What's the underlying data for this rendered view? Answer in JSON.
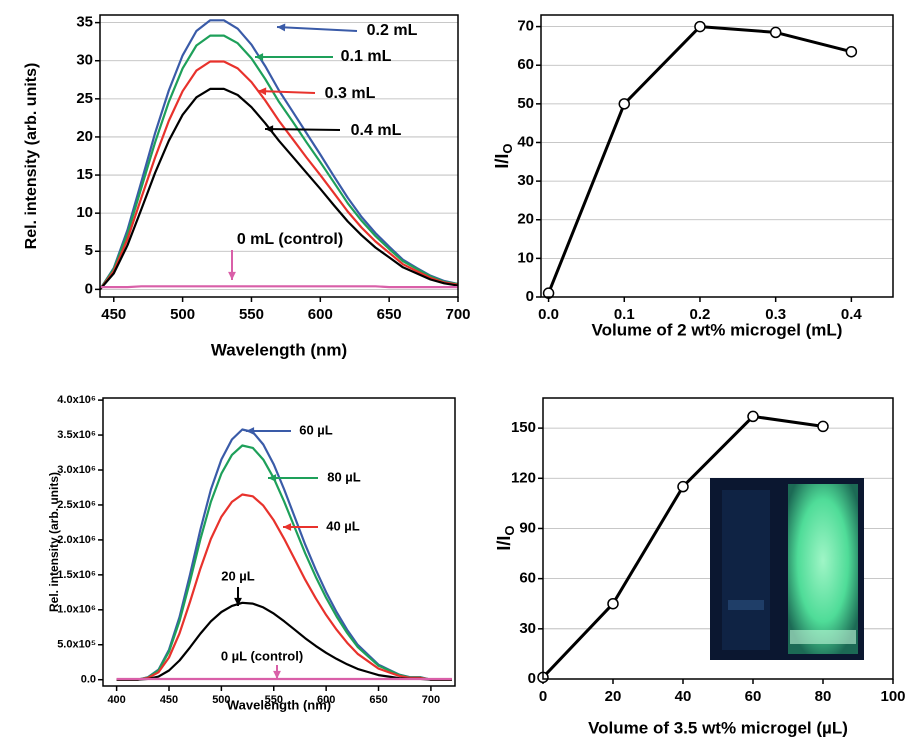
{
  "chart_data": [
    {
      "type": "line",
      "xlabel": "Wavelength (nm)",
      "ylabel": "Rel. intensity (arb. units)",
      "xlim": [
        440,
        700
      ],
      "ylim": [
        -1,
        36
      ],
      "xticks": [
        450,
        500,
        550,
        600,
        650,
        700
      ],
      "yticks": [
        0,
        5,
        10,
        15,
        20,
        25,
        30,
        35
      ],
      "grid": true,
      "x": [
        440,
        450,
        460,
        470,
        480,
        490,
        500,
        510,
        520,
        530,
        540,
        550,
        560,
        570,
        580,
        590,
        600,
        610,
        620,
        630,
        640,
        650,
        660,
        670,
        680,
        690,
        700
      ],
      "series": [
        {
          "name": "0.2 mL",
          "color": "#3a5ba8",
          "values": [
            0,
            2.8,
            7.8,
            14.1,
            20.5,
            26.1,
            30.7,
            33.9,
            35.3,
            35.3,
            34.2,
            32.1,
            29.3,
            26.1,
            23.3,
            20.5,
            17.7,
            14.8,
            12.0,
            9.5,
            7.4,
            5.6,
            3.9,
            2.8,
            1.8,
            1.1,
            0.7
          ]
        },
        {
          "name": "0.1 mL",
          "color": "#1ea05a",
          "values": [
            0,
            2.7,
            7.3,
            13.3,
            19.3,
            24.6,
            29.0,
            32.0,
            33.3,
            33.3,
            32.3,
            30.3,
            27.6,
            24.6,
            22.0,
            19.3,
            16.7,
            14.0,
            11.3,
            9.0,
            7.0,
            5.3,
            3.7,
            2.7,
            1.7,
            1.0,
            0.7
          ]
        },
        {
          "name": "0.3 mL",
          "color": "#e8322c",
          "values": [
            0,
            2.4,
            6.6,
            12.0,
            17.3,
            22.1,
            26.0,
            28.7,
            29.9,
            29.9,
            29.0,
            27.2,
            24.8,
            22.1,
            19.7,
            17.3,
            15.0,
            12.6,
            10.2,
            8.1,
            6.3,
            4.8,
            3.3,
            2.4,
            1.5,
            0.9,
            0.6
          ]
        },
        {
          "name": "0.4 mL",
          "color": "#000000",
          "values": [
            0,
            2.1,
            5.8,
            10.5,
            15.3,
            19.5,
            22.9,
            25.2,
            26.3,
            26.3,
            25.5,
            23.9,
            21.8,
            19.5,
            17.4,
            15.3,
            13.2,
            11.0,
            8.9,
            7.1,
            5.5,
            4.2,
            2.9,
            2.1,
            1.3,
            0.8,
            0.5
          ]
        },
        {
          "name": "0 mL (control)",
          "color": "#d95fa8",
          "values": [
            0.3,
            0.3,
            0.3,
            0.4,
            0.4,
            0.4,
            0.4,
            0.4,
            0.4,
            0.4,
            0.4,
            0.4,
            0.4,
            0.4,
            0.4,
            0.4,
            0.4,
            0.4,
            0.4,
            0.4,
            0.4,
            0.3,
            0.3,
            0.3,
            0.3,
            0.3,
            0.3
          ]
        }
      ]
    },
    {
      "type": "line",
      "markers": true,
      "xlabel": "Volume of 2 wt% microgel (mL)",
      "ylabel": "I/I",
      "ylabel_subscript": "O",
      "xlim": [
        -0.01,
        0.455
      ],
      "ylim": [
        0,
        73
      ],
      "xticks": [
        {
          "value": 0,
          "label": "0.0"
        },
        0.1,
        0.2,
        0.3,
        0.4
      ],
      "yticks": [
        0,
        10,
        20,
        30,
        40,
        50,
        60,
        70
      ],
      "grid": true,
      "x": [
        0,
        0.1,
        0.2,
        0.3,
        0.4
      ],
      "color": "#000000",
      "values": [
        1,
        50,
        70,
        68.5,
        63.5
      ]
    },
    {
      "type": "line",
      "xlabel": "Wavelength (nm)",
      "ylabel": "Rel. intensity (arb. units)",
      "xlim": [
        387,
        723
      ],
      "ylim": [
        -90000,
        4030000
      ],
      "xticks": [
        400,
        450,
        500,
        550,
        600,
        650,
        700
      ],
      "yticks": [
        {
          "value": 0,
          "label": "0.0"
        },
        {
          "value": 500000,
          "label": "5.0x10⁵"
        },
        {
          "value": 1000000,
          "label": "1.0x10⁶"
        },
        {
          "value": 1500000,
          "label": "1.5x10⁶"
        },
        {
          "value": 2000000,
          "label": "2.0x10⁶"
        },
        {
          "value": 2500000,
          "label": "2.5x10⁶"
        },
        {
          "value": 3000000,
          "label": "3.0x10⁶"
        },
        {
          "value": 3500000,
          "label": "3.5x10⁶"
        },
        {
          "value": 4000000,
          "label": "4.0x10⁶"
        }
      ],
      "grid": false,
      "x": [
        400,
        410,
        420,
        430,
        440,
        450,
        460,
        470,
        480,
        490,
        500,
        510,
        520,
        530,
        540,
        550,
        560,
        570,
        580,
        590,
        600,
        610,
        620,
        630,
        640,
        650,
        660,
        670,
        680,
        690,
        700,
        710,
        720
      ],
      "series": [
        {
          "name": "60 µL",
          "color": "#3a5ba8",
          "values": [
            0,
            0,
            0,
            35800,
            143200,
            429600,
            895000,
            1503600,
            2148000,
            2720800,
            3150400,
            3436800,
            3580000,
            3544200,
            3365200,
            3078800,
            2720800,
            2327000,
            1933200,
            1575200,
            1253000,
            966600,
            716000,
            501200,
            358000,
            214800,
            143200,
            71600,
            35800,
            35800,
            0,
            0,
            0
          ]
        },
        {
          "name": "80 µL",
          "color": "#1ea05a",
          "values": [
            0,
            0,
            0,
            33500,
            134000,
            402000,
            837500,
            1407000,
            2010000,
            2546000,
            2948000,
            3216000,
            3350000,
            3316500,
            3149000,
            2881000,
            2546000,
            2177500,
            1809000,
            1474000,
            1172500,
            904500,
            670000,
            469000,
            335000,
            201000,
            134000,
            67000,
            33500,
            33500,
            0,
            0,
            0
          ]
        },
        {
          "name": "40 µL",
          "color": "#e8322c",
          "values": [
            0,
            0,
            0,
            26500,
            106000,
            318000,
            662500,
            1113000,
            1590000,
            2014000,
            2332000,
            2544000,
            2650000,
            2623500,
            2491000,
            2279000,
            2014000,
            1722500,
            1431000,
            1166000,
            927500,
            715500,
            530000,
            371000,
            265000,
            159000,
            106000,
            53000,
            26500,
            26500,
            0,
            0,
            0
          ]
        },
        {
          "name": "20 µL",
          "color": "#000000",
          "values": [
            0,
            0,
            0,
            11000,
            44000,
            132000,
            275000,
            462000,
            660000,
            836000,
            968000,
            1056000,
            1100000,
            1089000,
            1034000,
            946000,
            836000,
            715000,
            594000,
            484000,
            385000,
            297000,
            220000,
            154000,
            110000,
            66000,
            44000,
            22000,
            11000,
            11000,
            0,
            0,
            0
          ]
        },
        {
          "name": "0 µL (control)",
          "color": "#d95fa8",
          "values": [
            10000,
            10000,
            10000,
            10000,
            10000,
            10000,
            10000,
            10000,
            10000,
            10000,
            10000,
            10000,
            10000,
            10000,
            10000,
            10000,
            10000,
            10000,
            10000,
            10000,
            10000,
            10000,
            10000,
            10000,
            10000,
            10000,
            10000,
            10000,
            10000,
            10000,
            10000,
            10000,
            10000
          ]
        }
      ]
    },
    {
      "type": "line",
      "markers": true,
      "xlabel": "Volume of 3.5 wt% microgel (µL)",
      "ylabel": "I/I",
      "ylabel_subscript": "O",
      "xlim": [
        0,
        100
      ],
      "ylim": [
        0,
        168
      ],
      "xticks": [
        0,
        20,
        40,
        60,
        80,
        100
      ],
      "yticks": [
        0,
        30,
        60,
        90,
        120,
        150
      ],
      "grid": true,
      "x": [
        0,
        20,
        40,
        60,
        80
      ],
      "color": "#000000",
      "values": [
        1,
        45,
        115,
        157,
        151
      ]
    }
  ]
}
